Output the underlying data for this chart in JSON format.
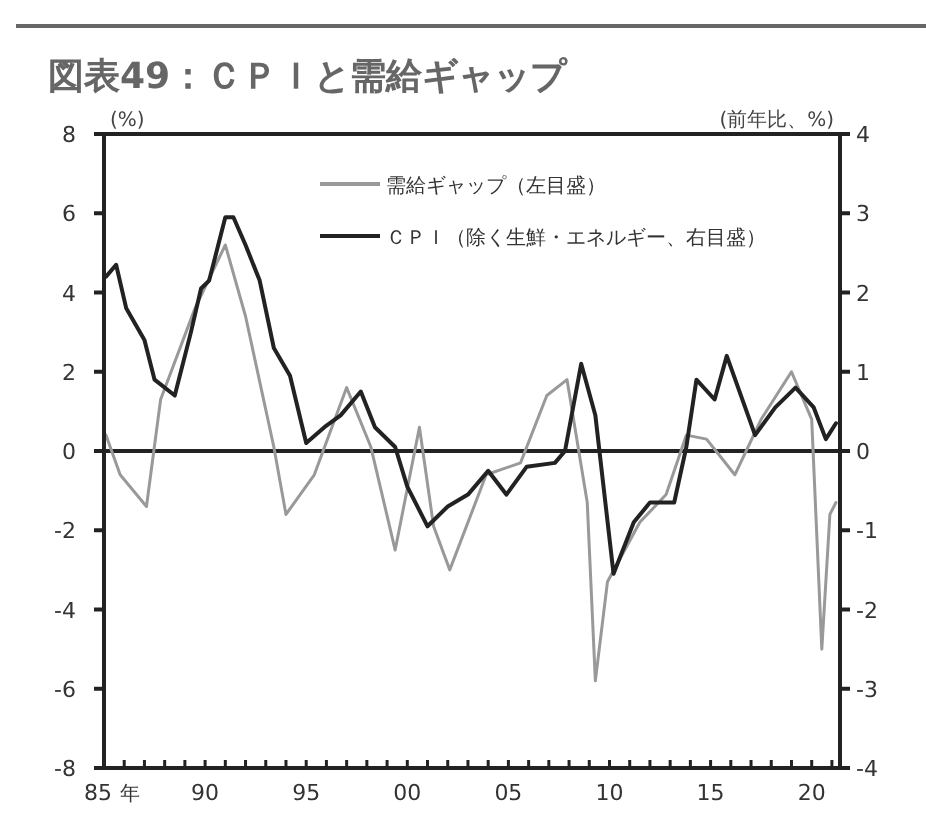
{
  "chart_data": {
    "type": "line",
    "title": "図表49：ＣＰＩと需給ギャップ",
    "xlabel": "年",
    "ylabel": "(%)",
    "y2label": "(前年比、%)",
    "xlim": [
      1985,
      2021.4
    ],
    "xticks": [
      {
        "value": 1985,
        "label": "85"
      },
      {
        "value": 1986,
        "label": null
      },
      {
        "value": 1987,
        "label": null
      },
      {
        "value": 1988,
        "label": null
      },
      {
        "value": 1989,
        "label": null
      },
      {
        "value": 1990,
        "label": "90"
      },
      {
        "value": 1991,
        "label": null
      },
      {
        "value": 1992,
        "label": null
      },
      {
        "value": 1993,
        "label": null
      },
      {
        "value": 1994,
        "label": null
      },
      {
        "value": 1995,
        "label": "95"
      },
      {
        "value": 1996,
        "label": null
      },
      {
        "value": 1997,
        "label": null
      },
      {
        "value": 1998,
        "label": null
      },
      {
        "value": 1999,
        "label": null
      },
      {
        "value": 2000,
        "label": "00"
      },
      {
        "value": 2001,
        "label": null
      },
      {
        "value": 2002,
        "label": null
      },
      {
        "value": 2003,
        "label": null
      },
      {
        "value": 2004,
        "label": null
      },
      {
        "value": 2005,
        "label": "05"
      },
      {
        "value": 2006,
        "label": null
      },
      {
        "value": 2007,
        "label": null
      },
      {
        "value": 2008,
        "label": null
      },
      {
        "value": 2009,
        "label": null
      },
      {
        "value": 2010,
        "label": "10"
      },
      {
        "value": 2011,
        "label": null
      },
      {
        "value": 2012,
        "label": null
      },
      {
        "value": 2013,
        "label": null
      },
      {
        "value": 2014,
        "label": null
      },
      {
        "value": 2015,
        "label": "15"
      },
      {
        "value": 2016,
        "label": null
      },
      {
        "value": 2017,
        "label": null
      },
      {
        "value": 2018,
        "label": null
      },
      {
        "value": 2019,
        "label": null
      },
      {
        "value": 2020,
        "label": "20"
      },
      {
        "value": 2021,
        "label": null
      }
    ],
    "ylim": [
      -8,
      8
    ],
    "yticks": [
      -8,
      -6,
      -4,
      -2,
      0,
      2,
      4,
      6,
      8
    ],
    "y2lim": [
      -4,
      4
    ],
    "y2ticks": [
      -4,
      -3,
      -2,
      -1,
      0,
      1,
      2,
      3,
      4
    ],
    "ref_lines": [
      {
        "axis": "y",
        "value": 0,
        "color": "#222222"
      }
    ],
    "legend": "top",
    "grid": false,
    "marker": "none",
    "line_style": "solid",
    "series": [
      {
        "name": "需給ギャップ（左目盛）",
        "color": "#999999",
        "axis": "y",
        "x": [
          1985.1,
          1985.8,
          1987.1,
          1987.8,
          1989.5,
          1991,
          1992,
          1993.4,
          1994,
          1995.4,
          1997,
          1998.2,
          1999.4,
          2000.6,
          2001.3,
          2002.1,
          2003.9,
          2005.6,
          2006.9,
          2007.9,
          2008.9,
          2009.3,
          2009.9,
          2011.5,
          2012.8,
          2013.8,
          2014.8,
          2016.2,
          2017.5,
          2019,
          2020,
          2020.5,
          2020.9,
          2021.2
        ],
        "values": [
          0.4,
          -0.6,
          -1.4,
          1.3,
          3.6,
          5.2,
          3.4,
          0.1,
          -1.6,
          -0.6,
          1.6,
          0.1,
          -2.5,
          0.6,
          -1.9,
          -3.0,
          -0.6,
          -0.3,
          1.4,
          1.8,
          -1.3,
          -5.8,
          -3.3,
          -1.8,
          -1.1,
          0.4,
          0.3,
          -0.6,
          0.8,
          2.0,
          0.8,
          -5.0,
          -1.6,
          -1.3
        ]
      },
      {
        "name": "ＣＰＩ（除く生鮮・エネルギー、右目盛）",
        "color": "#222222",
        "axis": "y2",
        "x": [
          1985.1,
          1985.6,
          1986.1,
          1987,
          1987.5,
          1988.5,
          1989.3,
          1989.8,
          1990.2,
          1991,
          1991.4,
          1992,
          1992.7,
          1993.4,
          1994.2,
          1995,
          1995.9,
          1996.7,
          1997.7,
          1998.4,
          1999.4,
          2000,
          2001,
          2002,
          2003,
          2004,
          2004.9,
          2005.9,
          2007.3,
          2007.8,
          2008.6,
          2009.3,
          2010.2,
          2011.2,
          2012,
          2013.2,
          2013.8,
          2014.3,
          2015.2,
          2015.8,
          2017.2,
          2018.2,
          2019.2,
          2020.1,
          2020.7,
          2021.2
        ],
        "values": [
          2.2,
          2.35,
          1.8,
          1.4,
          0.9,
          0.7,
          1.5,
          2.05,
          2.15,
          2.95,
          2.95,
          2.6,
          2.15,
          1.3,
          0.95,
          0.1,
          0.3,
          0.45,
          0.75,
          0.3,
          0.05,
          -0.45,
          -0.95,
          -0.7,
          -0.55,
          -0.25,
          -0.55,
          -0.2,
          -0.15,
          0,
          1.1,
          0.45,
          -1.55,
          -0.9,
          -0.65,
          -0.65,
          0.05,
          0.9,
          0.65,
          1.2,
          0.2,
          0.55,
          0.8,
          0.55,
          0.15,
          0.35
        ]
      }
    ]
  }
}
